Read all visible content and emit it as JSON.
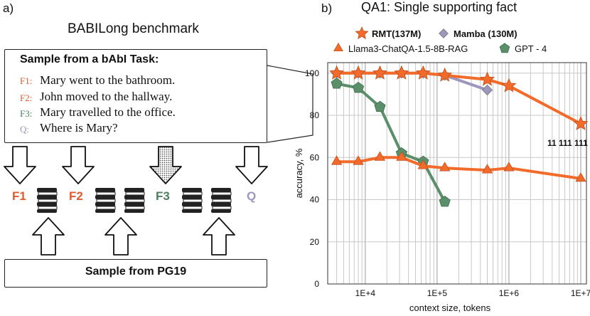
{
  "left_panel": {
    "letter": "a)",
    "title": "BABILong benchmark",
    "sample_title": "Sample from a bAbI Task:",
    "facts": [
      {
        "label": "F1:",
        "text": "Mary went to the bathroom.",
        "color": "#e05a2b"
      },
      {
        "label": "F2:",
        "text": "John moved to the hallway.",
        "color": "#e05a2b"
      },
      {
        "label": "F3:",
        "text": "Mary travelled to the office.",
        "color": "#4a7f5f"
      },
      {
        "label": "Q:",
        "text": "Where is Mary?",
        "color": "#9b97bd"
      }
    ],
    "sequence_labels": [
      {
        "text": "F1",
        "color": "#e05a2b"
      },
      {
        "text": "F2",
        "color": "#e05a2b"
      },
      {
        "text": "F3",
        "color": "#4a7f5f"
      },
      {
        "text": "Q",
        "color": "#9b97bd"
      }
    ],
    "pg19_label": "Sample from PG19"
  },
  "right_panel": {
    "letter": "b)",
    "title": "QA1: Single supporting fact"
  },
  "chart_data": {
    "type": "line",
    "title": "QA1: Single supporting fact",
    "xlabel": "context size, tokens",
    "ylabel": "accuracy, %",
    "xscale": "log",
    "xlim": [
      3000,
      12000000
    ],
    "ylim": [
      0,
      105
    ],
    "xticks": [
      "1E+4",
      "1E+5",
      "1E+6",
      "1E+7"
    ],
    "yticks": [
      "0",
      "20",
      "40",
      "60",
      "80",
      "100"
    ],
    "grid": true,
    "legend_position": "top",
    "annotations": [
      "11 111 111"
    ],
    "series": [
      {
        "name": "RMT(137M)",
        "marker": "star",
        "color": "#f26b2a",
        "x": [
          4000,
          8000,
          16000,
          32000,
          64000,
          128000,
          500000,
          1000000,
          10000000
        ],
        "y": [
          100,
          100,
          100,
          100,
          100,
          99,
          97,
          94,
          76
        ]
      },
      {
        "name": "Mamba (130M)",
        "marker": "diamond",
        "color": "#9b97bd",
        "x": [
          4000,
          8000,
          16000,
          32000,
          64000,
          128000,
          500000
        ],
        "y": [
          100,
          100,
          100,
          100,
          100,
          99,
          92
        ]
      },
      {
        "name": "Llama3-ChatQA-1.5-8B-RAG",
        "marker": "triangle",
        "color": "#f26b2a",
        "x": [
          4000,
          8000,
          16000,
          32000,
          64000,
          128000,
          500000,
          1000000,
          10000000
        ],
        "y": [
          58,
          58,
          60,
          60,
          56,
          55,
          54,
          55,
          50
        ]
      },
      {
        "name": "GPT - 4",
        "marker": "pentagon",
        "color": "#5a8f6a",
        "x": [
          4000,
          8000,
          16000,
          32000,
          64000,
          128000
        ],
        "y": [
          95,
          93,
          84,
          62,
          58,
          39
        ]
      }
    ]
  }
}
